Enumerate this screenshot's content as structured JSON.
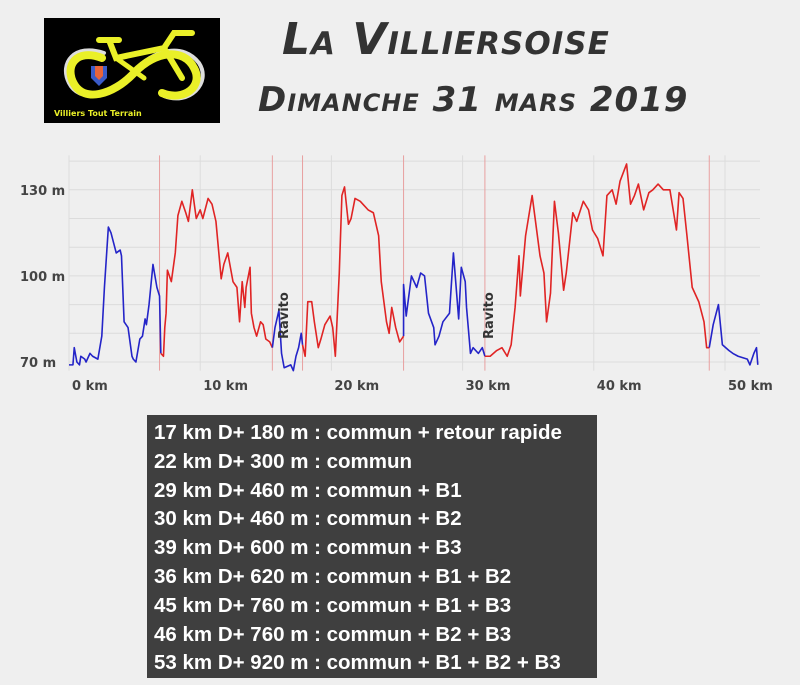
{
  "header": {
    "title": "La Villiersoise",
    "date": "Dimanche 31 mars 2019",
    "logo_text": "Villiers Tout Terrain"
  },
  "chart_data": {
    "type": "line",
    "title": "",
    "xlabel": "",
    "ylabel": "",
    "xlim": [
      0,
      52.5
    ],
    "ylim": [
      65,
      142
    ],
    "x_ticks": [
      {
        "v": 0,
        "label": "0 km"
      },
      {
        "v": 10,
        "label": "10 km"
      },
      {
        "v": 20,
        "label": "20 km"
      },
      {
        "v": 30,
        "label": "30 km"
      },
      {
        "v": 40,
        "label": "40 km"
      },
      {
        "v": 50,
        "label": "50 km"
      }
    ],
    "y_ticks": [
      {
        "v": 70,
        "label": "70 m"
      },
      {
        "v": 100,
        "label": "100 m"
      },
      {
        "v": 130,
        "label": "130 m"
      }
    ],
    "y_grid": [
      70,
      80,
      90,
      100,
      110,
      120,
      130,
      140
    ],
    "section_markers_km": [
      6.9,
      15.5,
      17.8,
      25.5,
      31.7,
      48.8
    ],
    "annotations": [
      {
        "km": 16.7,
        "text": "Ravito"
      },
      {
        "km": 32.3,
        "text": "Ravito"
      }
    ],
    "colors": {
      "blue": "#2424c8",
      "red": "#e02424",
      "marker": "#e8a0a0",
      "grid": "#dcdcdc"
    },
    "segments": [
      {
        "color": "blue",
        "points": [
          [
            0,
            69
          ],
          [
            0.3,
            69
          ],
          [
            0.4,
            75
          ],
          [
            0.6,
            70
          ],
          [
            0.8,
            69
          ],
          [
            0.9,
            72
          ],
          [
            1.2,
            71
          ],
          [
            1.3,
            70
          ],
          [
            1.6,
            73
          ],
          [
            1.8,
            72
          ],
          [
            2.2,
            71
          ],
          [
            2.5,
            79
          ],
          [
            2.7,
            96
          ],
          [
            3.0,
            117
          ],
          [
            3.2,
            115
          ],
          [
            3.6,
            108
          ],
          [
            3.9,
            109
          ],
          [
            4.0,
            107
          ],
          [
            4.2,
            84
          ],
          [
            4.5,
            82
          ],
          [
            4.8,
            72
          ],
          [
            4.9,
            71
          ],
          [
            5.1,
            70
          ],
          [
            5.4,
            78
          ],
          [
            5.6,
            79
          ],
          [
            5.8,
            85
          ],
          [
            5.9,
            83
          ],
          [
            6.1,
            90
          ],
          [
            6.4,
            104
          ],
          [
            6.7,
            96
          ],
          [
            6.9,
            93
          ],
          [
            7.0,
            73
          ]
        ]
      },
      {
        "color": "red",
        "points": [
          [
            7.0,
            73
          ],
          [
            7.2,
            72
          ],
          [
            7.3,
            82
          ],
          [
            7.4,
            87
          ],
          [
            7.5,
            102
          ],
          [
            7.8,
            98
          ],
          [
            8.1,
            108
          ],
          [
            8.3,
            121
          ],
          [
            8.6,
            126
          ],
          [
            8.9,
            122
          ],
          [
            9.1,
            119
          ],
          [
            9.4,
            130
          ],
          [
            9.7,
            120
          ],
          [
            10.0,
            123
          ],
          [
            10.2,
            120
          ],
          [
            10.6,
            127
          ],
          [
            10.9,
            125
          ],
          [
            11.2,
            119
          ],
          [
            11.5,
            104
          ],
          [
            11.6,
            99
          ],
          [
            11.8,
            104
          ],
          [
            12.1,
            108
          ],
          [
            12.5,
            98
          ],
          [
            12.8,
            96
          ],
          [
            13.0,
            84
          ],
          [
            13.2,
            98
          ],
          [
            13.4,
            89
          ],
          [
            13.5,
            96
          ],
          [
            13.8,
            103
          ],
          [
            13.9,
            87
          ],
          [
            14.1,
            82
          ],
          [
            14.3,
            79
          ],
          [
            14.6,
            84
          ],
          [
            14.8,
            83
          ],
          [
            15.0,
            78
          ],
          [
            15.3,
            77
          ],
          [
            15.5,
            75
          ]
        ]
      },
      {
        "color": "blue",
        "points": [
          [
            15.5,
            75
          ],
          [
            15.7,
            82
          ],
          [
            16.0,
            88
          ],
          [
            16.2,
            73
          ],
          [
            16.4,
            68
          ],
          [
            16.9,
            69
          ],
          [
            17.1,
            67
          ],
          [
            17.3,
            72
          ],
          [
            17.5,
            75
          ],
          [
            17.7,
            80
          ],
          [
            17.8,
            76
          ]
        ]
      },
      {
        "color": "red",
        "points": [
          [
            17.8,
            76
          ],
          [
            18.0,
            72
          ],
          [
            18.2,
            91
          ],
          [
            18.5,
            91
          ],
          [
            18.7,
            84
          ],
          [
            19.0,
            75
          ],
          [
            19.2,
            78
          ],
          [
            19.5,
            83
          ],
          [
            19.9,
            86
          ],
          [
            20.1,
            82
          ],
          [
            20.3,
            72
          ],
          [
            20.6,
            101
          ],
          [
            20.8,
            128
          ],
          [
            21.0,
            131
          ],
          [
            21.3,
            118
          ],
          [
            21.5,
            120
          ],
          [
            21.8,
            127
          ],
          [
            22.2,
            126
          ],
          [
            22.4,
            125
          ],
          [
            22.8,
            123
          ],
          [
            23.2,
            122
          ],
          [
            23.6,
            114
          ],
          [
            23.8,
            98
          ],
          [
            24.2,
            84
          ],
          [
            24.4,
            80
          ],
          [
            24.6,
            89
          ],
          [
            24.9,
            82
          ],
          [
            25.2,
            77
          ],
          [
            25.5,
            79
          ]
        ]
      },
      {
        "color": "blue",
        "points": [
          [
            25.5,
            79
          ],
          [
            25.5,
            97
          ],
          [
            25.7,
            86
          ],
          [
            26.1,
            100
          ],
          [
            26.5,
            96
          ],
          [
            26.8,
            101
          ],
          [
            27.1,
            100
          ],
          [
            27.4,
            87
          ],
          [
            27.8,
            82
          ],
          [
            27.9,
            76
          ],
          [
            28.2,
            79
          ],
          [
            28.5,
            84
          ],
          [
            29.0,
            87
          ],
          [
            29.2,
            101
          ],
          [
            29.3,
            108
          ],
          [
            29.7,
            85
          ],
          [
            29.9,
            103
          ],
          [
            30.2,
            98
          ],
          [
            30.3,
            89
          ],
          [
            30.6,
            73
          ],
          [
            30.8,
            75
          ],
          [
            31.2,
            73
          ],
          [
            31.5,
            75
          ],
          [
            31.7,
            72
          ]
        ]
      },
      {
        "color": "red",
        "points": [
          [
            31.7,
            72
          ],
          [
            32.1,
            72
          ],
          [
            32.6,
            74
          ],
          [
            33.0,
            75
          ],
          [
            33.4,
            72
          ],
          [
            33.7,
            76
          ],
          [
            34.0,
            89
          ],
          [
            34.3,
            107
          ],
          [
            34.4,
            93
          ],
          [
            34.8,
            114
          ],
          [
            35.3,
            128
          ],
          [
            35.5,
            121
          ],
          [
            35.9,
            107
          ],
          [
            36.2,
            101
          ],
          [
            36.4,
            84
          ],
          [
            36.7,
            94
          ],
          [
            37.0,
            126
          ],
          [
            37.3,
            115
          ],
          [
            37.7,
            95
          ],
          [
            37.9,
            101
          ],
          [
            38.4,
            122
          ],
          [
            38.7,
            119
          ],
          [
            39.2,
            126
          ],
          [
            39.6,
            123
          ],
          [
            39.9,
            116
          ],
          [
            40.3,
            113
          ],
          [
            40.7,
            107
          ],
          [
            41.0,
            128
          ],
          [
            41.4,
            130
          ],
          [
            41.7,
            125
          ],
          [
            42.0,
            133
          ],
          [
            42.5,
            139
          ],
          [
            42.8,
            125
          ],
          [
            43.1,
            128
          ],
          [
            43.4,
            132
          ],
          [
            43.8,
            123
          ],
          [
            44.2,
            129
          ],
          [
            44.5,
            130
          ],
          [
            44.9,
            132
          ],
          [
            45.3,
            130
          ],
          [
            45.8,
            130
          ],
          [
            46.3,
            116
          ],
          [
            46.5,
            129
          ],
          [
            46.8,
            127
          ],
          [
            47.1,
            114
          ],
          [
            47.5,
            96
          ],
          [
            48.0,
            91
          ],
          [
            48.4,
            84
          ],
          [
            48.6,
            75
          ],
          [
            48.8,
            75
          ]
        ]
      },
      {
        "color": "blue",
        "points": [
          [
            48.8,
            75
          ],
          [
            49.1,
            83
          ],
          [
            49.5,
            90
          ],
          [
            49.8,
            76
          ],
          [
            50.3,
            74
          ],
          [
            50.6,
            73
          ],
          [
            51.0,
            72
          ],
          [
            51.7,
            71
          ],
          [
            51.9,
            69
          ],
          [
            52.2,
            73
          ],
          [
            52.4,
            75
          ],
          [
            52.5,
            69
          ]
        ]
      }
    ]
  },
  "routes": [
    "17 km D+ 180 m : commun + retour rapide",
    "22 km D+ 300 m : commun",
    "29 km D+ 460 m : commun + B1",
    "30 km D+ 460 m : commun + B2",
    "39 km D+ 600 m : commun + B3",
    "36 km D+ 620 m : commun + B1 + B2",
    "45 km D+ 760 m : commun + B1 + B3",
    "46 km D+ 760 m : commun + B2 + B3",
    "53 km D+ 920 m : commun + B1 + B2 + B3"
  ]
}
